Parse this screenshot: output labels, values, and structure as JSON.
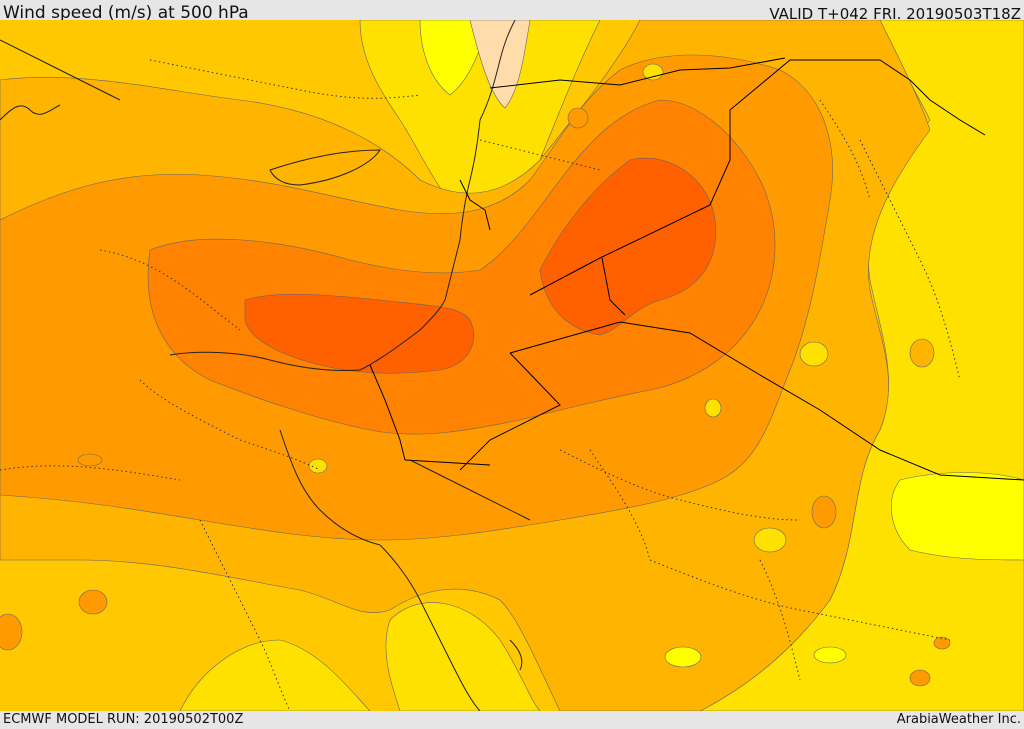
{
  "header": {
    "title": "Wind speed (m/s) at 500 hPa",
    "valid": "VALID T+042 FRI. 20190503T18Z"
  },
  "footer": {
    "model_run": "ECMWF MODEL RUN: 20190502T00Z",
    "credit": "ArabiaWeather Inc."
  },
  "colors": {
    "yellow": "#ffe100",
    "light_yellow": "#ffff00",
    "gold": "#ffc800",
    "orange_light": "#ffb400",
    "orange": "#ff9b00",
    "orange_dark": "#ff8200",
    "red_orange": "#ff6000",
    "tan": "#ffdcaa"
  }
}
